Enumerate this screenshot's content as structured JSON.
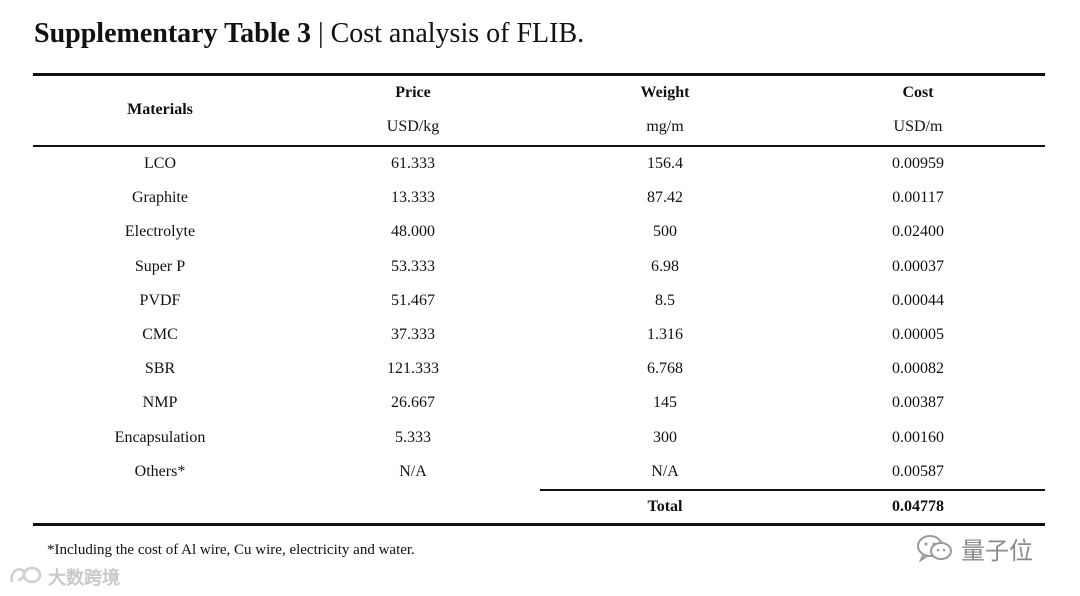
{
  "caption": {
    "label": "Supplementary Table 3",
    "separator": "|",
    "title": "Cost analysis of FLIB."
  },
  "header": {
    "materials": "Materials",
    "price": "Price",
    "price_unit": "USD/kg",
    "weight": "Weight",
    "weight_unit": "mg/m",
    "cost": "Cost",
    "cost_unit": "USD/m"
  },
  "rows": [
    {
      "material": "LCO",
      "price": "61.333",
      "weight": "156.4",
      "cost": "0.00959"
    },
    {
      "material": "Graphite",
      "price": "13.333",
      "weight": "87.42",
      "cost": "0.00117"
    },
    {
      "material": "Electrolyte",
      "price": "48.000",
      "weight": "500",
      "cost": "0.02400"
    },
    {
      "material": "Super P",
      "price": "53.333",
      "weight": "6.98",
      "cost": "0.00037"
    },
    {
      "material": "PVDF",
      "price": "51.467",
      "weight": "8.5",
      "cost": "0.00044"
    },
    {
      "material": "CMC",
      "price": "37.333",
      "weight": "1.316",
      "cost": "0.00005"
    },
    {
      "material": "SBR",
      "price": "121.333",
      "weight": "6.768",
      "cost": "0.00082"
    },
    {
      "material": "NMP",
      "price": "26.667",
      "weight": "145",
      "cost": "0.00387"
    },
    {
      "material": "Encapsulation",
      "price": "5.333",
      "weight": "300",
      "cost": "0.00160"
    },
    {
      "material": "Others*",
      "price": "N/A",
      "weight": "N/A",
      "cost": "0.00587"
    }
  ],
  "total": {
    "label": "Total",
    "value": "0.04778"
  },
  "footnote": "*Including the cost of Al wire, Cu wire, electricity and water.",
  "brand": {
    "text": "量子位",
    "icon": "wechat-icon"
  },
  "watermark": {
    "text": "大数跨境",
    "icon": "logo-mark-icon"
  }
}
